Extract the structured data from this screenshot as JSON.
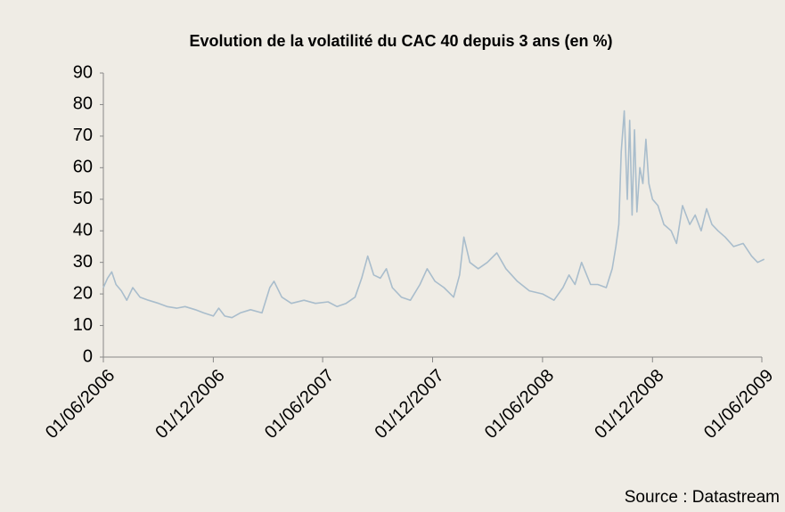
{
  "chart_data": {
    "type": "line",
    "title": "Evolution de la volatilité du CAC 40 depuis 3 ans (en %)",
    "source": "Source : Datastream",
    "x": [
      "2006-06-01",
      "2006-06-08",
      "2006-06-15",
      "2006-06-22",
      "2006-07-01",
      "2006-07-10",
      "2006-07-20",
      "2006-08-01",
      "2006-08-15",
      "2006-09-01",
      "2006-09-15",
      "2006-10-01",
      "2006-10-15",
      "2006-11-01",
      "2006-11-15",
      "2006-12-01",
      "2006-12-10",
      "2006-12-20",
      "2007-01-01",
      "2007-01-15",
      "2007-02-01",
      "2007-02-20",
      "2007-03-05",
      "2007-03-12",
      "2007-03-25",
      "2007-04-10",
      "2007-05-01",
      "2007-05-20",
      "2007-06-10",
      "2007-06-25",
      "2007-07-10",
      "2007-07-25",
      "2007-08-05",
      "2007-08-15",
      "2007-08-25",
      "2007-09-05",
      "2007-09-15",
      "2007-09-25",
      "2007-10-10",
      "2007-10-25",
      "2007-11-10",
      "2007-11-22",
      "2007-12-05",
      "2007-12-20",
      "2008-01-05",
      "2008-01-15",
      "2008-01-22",
      "2008-02-01",
      "2008-02-15",
      "2008-03-01",
      "2008-03-17",
      "2008-04-01",
      "2008-04-20",
      "2008-05-10",
      "2008-06-01",
      "2008-06-20",
      "2008-07-05",
      "2008-07-15",
      "2008-07-25",
      "2008-08-05",
      "2008-08-20",
      "2008-09-01",
      "2008-09-15",
      "2008-09-25",
      "2008-10-01",
      "2008-10-06",
      "2008-10-10",
      "2008-10-15",
      "2008-10-20",
      "2008-10-24",
      "2008-10-28",
      "2008-11-01",
      "2008-11-05",
      "2008-11-10",
      "2008-11-15",
      "2008-11-20",
      "2008-11-25",
      "2008-12-01",
      "2008-12-10",
      "2008-12-20",
      "2009-01-01",
      "2009-01-10",
      "2009-01-20",
      "2009-02-01",
      "2009-02-10",
      "2009-02-20",
      "2009-03-01",
      "2009-03-10",
      "2009-03-20",
      "2009-04-01",
      "2009-04-15",
      "2009-05-01",
      "2009-05-15",
      "2009-05-25",
      "2009-06-05"
    ],
    "series": [
      {
        "name": "CAC 40",
        "color": "#a9bdcc",
        "values": [
          22,
          25,
          27,
          23,
          21,
          18,
          22,
          19,
          18,
          17,
          16,
          15.5,
          16,
          15,
          14,
          13,
          15.5,
          13,
          12.5,
          14,
          15,
          14,
          22,
          24,
          19,
          17,
          18,
          17,
          17.5,
          16,
          17,
          19,
          25,
          32,
          26,
          25,
          28,
          22,
          19,
          18,
          23,
          28,
          24,
          22,
          19,
          26,
          38,
          30,
          28,
          30,
          33,
          28,
          24,
          21,
          20,
          18,
          22,
          26,
          23,
          30,
          23,
          23,
          22,
          28,
          35,
          42,
          65,
          78,
          50,
          75,
          45,
          72,
          46,
          60,
          55,
          69,
          55,
          50,
          48,
          42,
          40,
          36,
          48,
          42,
          45,
          40,
          47,
          42,
          40,
          38,
          35,
          36,
          32,
          30,
          31
        ]
      }
    ],
    "xlim": [
      "2006-06-01",
      "2009-06-01"
    ],
    "xticks": [
      {
        "value": "2006-06-01",
        "label": "01/06/2006"
      },
      {
        "value": "2006-12-01",
        "label": "01/12/2006"
      },
      {
        "value": "2007-06-01",
        "label": "01/06/2007"
      },
      {
        "value": "2007-12-01",
        "label": "01/12/2007"
      },
      {
        "value": "2008-06-01",
        "label": "01/06/2008"
      },
      {
        "value": "2008-12-01",
        "label": "01/12/2008"
      },
      {
        "value": "2009-06-01",
        "label": "01/06/2009"
      }
    ],
    "ylim": [
      0,
      90
    ],
    "yticks": [
      0,
      10,
      20,
      30,
      40,
      50,
      60,
      70,
      80,
      90
    ],
    "grid": false
  }
}
